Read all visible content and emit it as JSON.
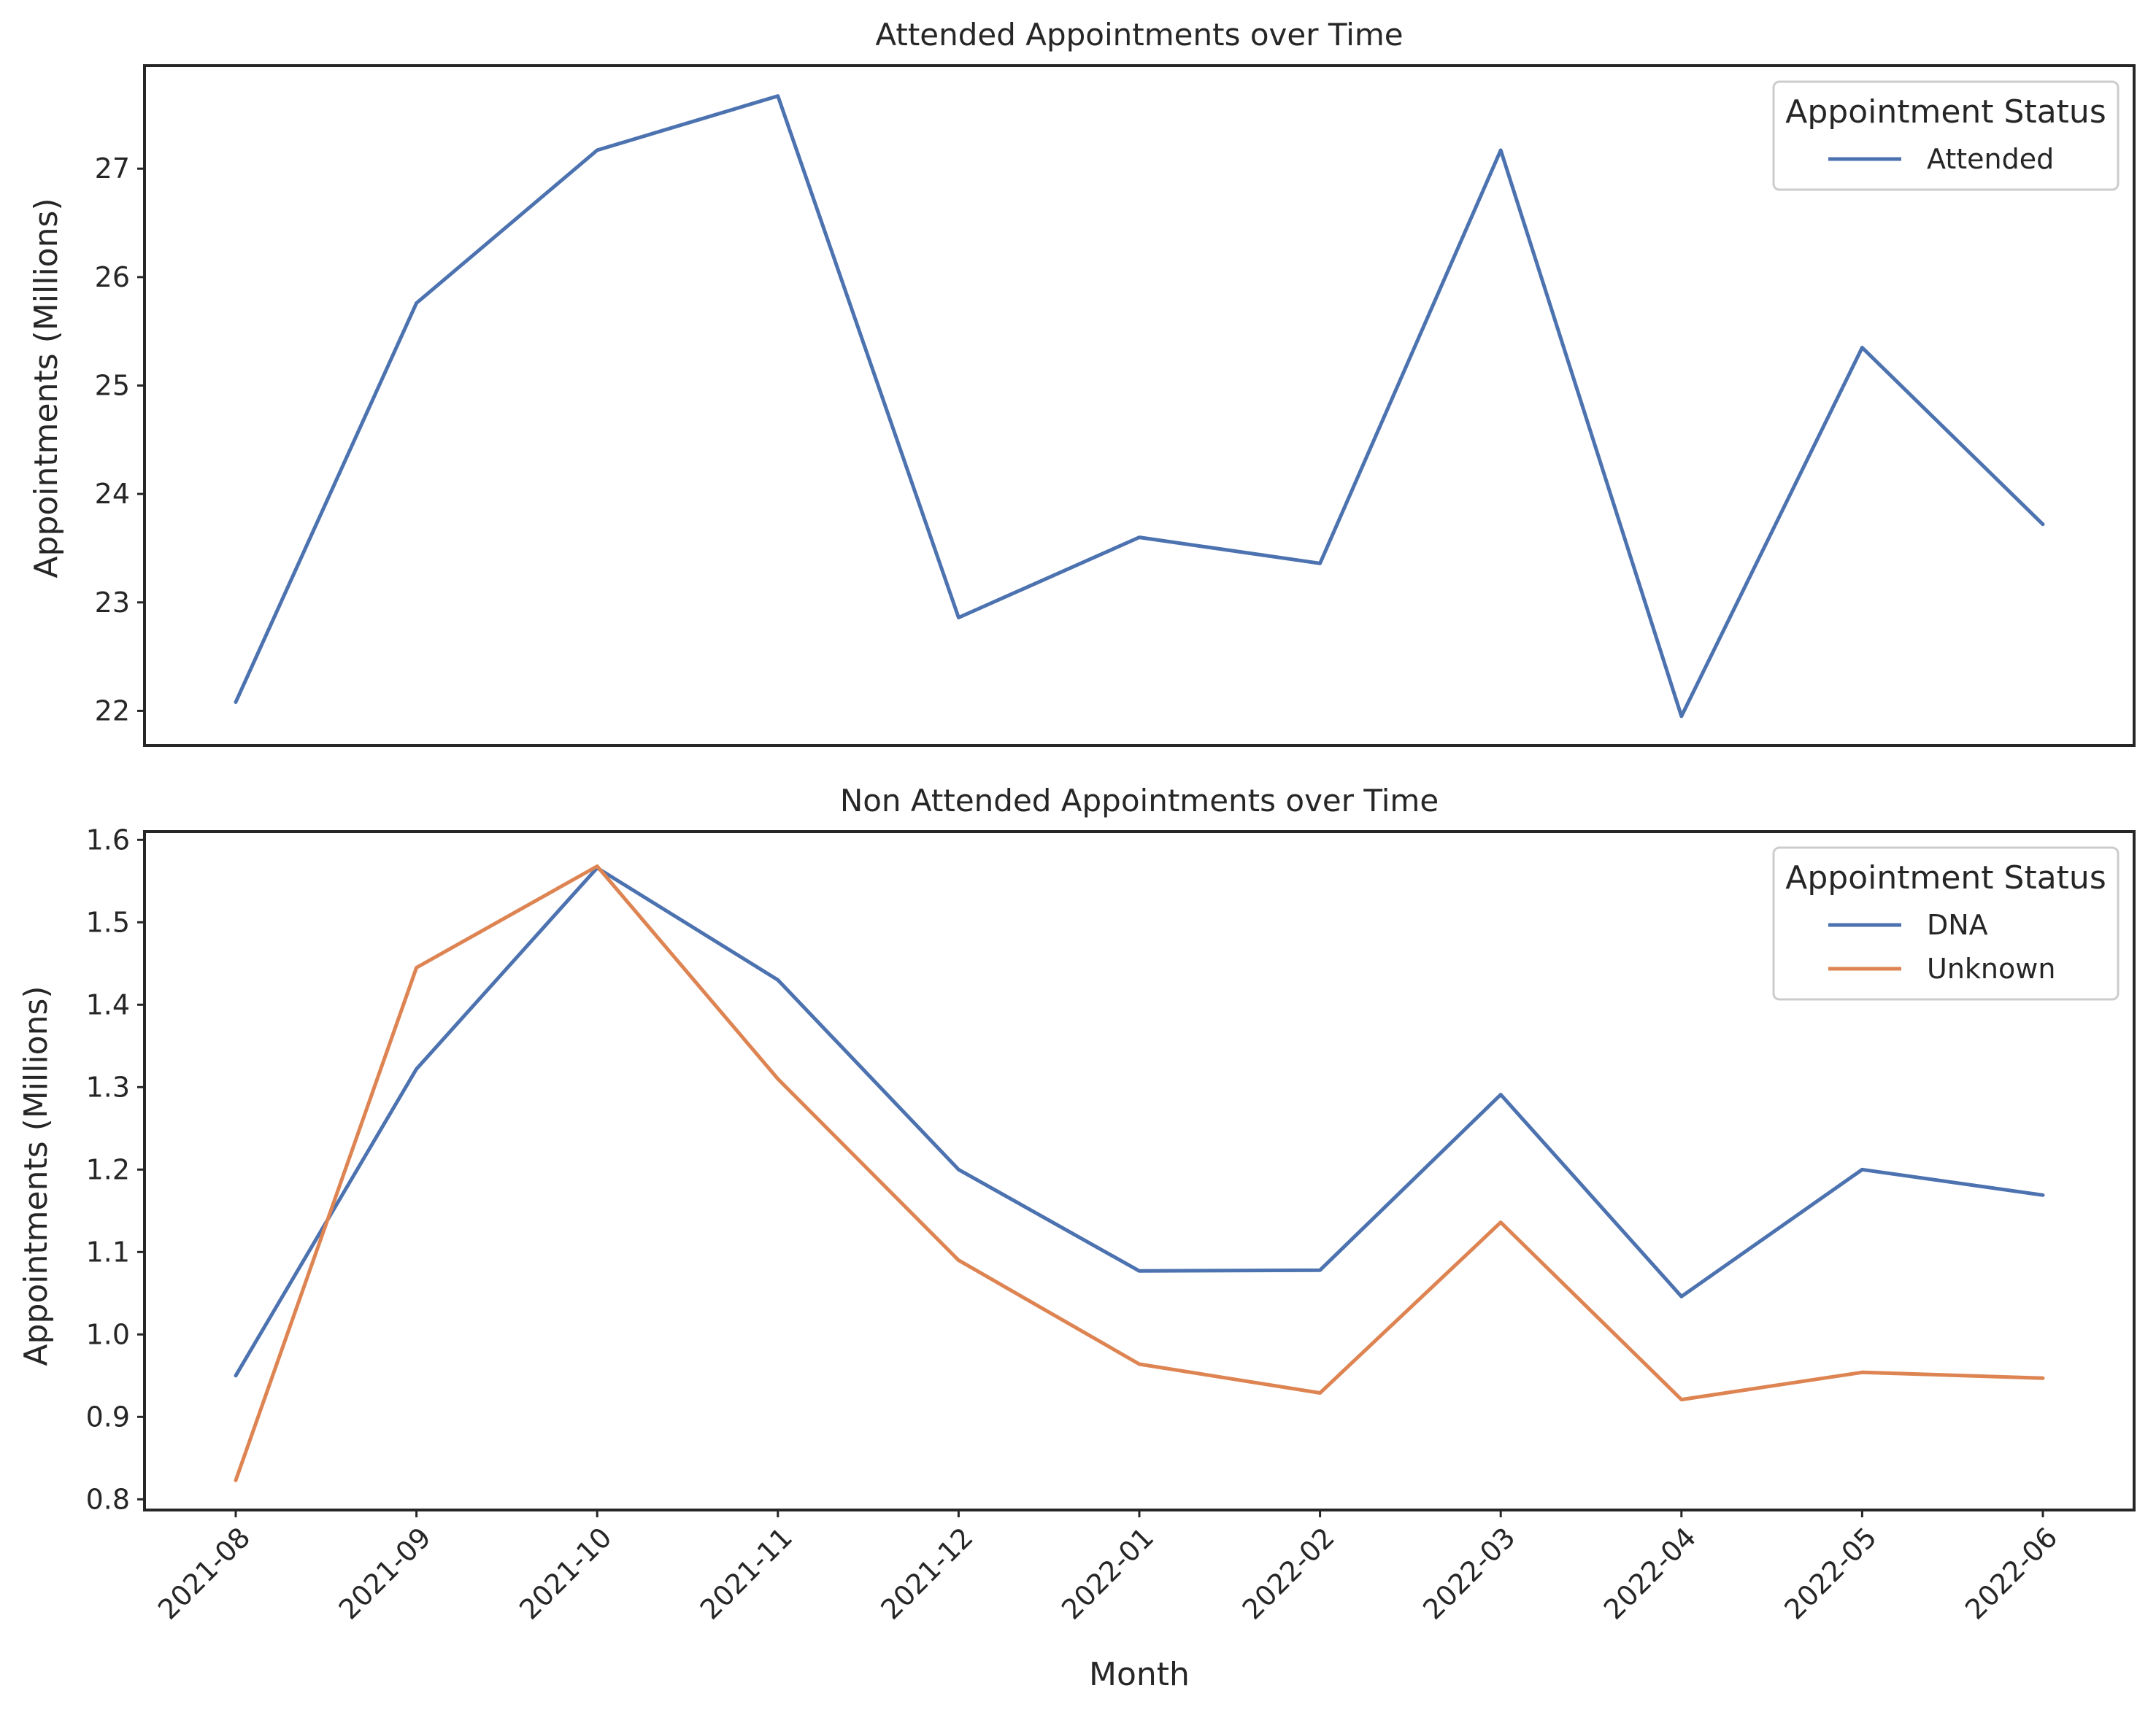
{
  "chart_data": [
    {
      "type": "line",
      "title": "Attended Appointments over Time",
      "xlabel": "",
      "ylabel": "Appointments (Millions)",
      "ylim": [
        21.68,
        27.95
      ],
      "yticks": [
        22,
        23,
        24,
        25,
        26,
        27
      ],
      "grid": false,
      "x": [
        "2021-08",
        "2021-09",
        "2021-10",
        "2021-11",
        "2021-12",
        "2022-01",
        "2022-02",
        "2022-03",
        "2022-04",
        "2022-05",
        "2022-06"
      ],
      "legend": {
        "title": "Appointment Status",
        "placement": "top-right"
      },
      "series": [
        {
          "name": "Attended",
          "color": "#4c72b0",
          "values": [
            22.08,
            25.76,
            27.17,
            27.67,
            22.86,
            23.6,
            23.36,
            27.17,
            21.95,
            25.35,
            23.72
          ]
        }
      ]
    },
    {
      "type": "line",
      "title": "Non Attended Appointments over Time",
      "xlabel": "Month",
      "ylabel": "Appointments (Millions)",
      "ylim": [
        0.787,
        1.61
      ],
      "yticks": [
        0.8,
        0.9,
        1.0,
        1.1,
        1.2,
        1.3,
        1.4,
        1.5,
        1.6
      ],
      "ytick_labels": [
        "0.8",
        "0.9",
        "1.0",
        "1.1",
        "1.2",
        "1.3",
        "1.4",
        "1.5",
        "1.6"
      ],
      "grid": false,
      "x": [
        "2021-08",
        "2021-09",
        "2021-10",
        "2021-11",
        "2021-12",
        "2022-01",
        "2022-02",
        "2022-03",
        "2022-04",
        "2022-05",
        "2022-06"
      ],
      "legend": {
        "title": "Appointment Status",
        "placement": "top-right"
      },
      "series": [
        {
          "name": "DNA",
          "color": "#4c72b0",
          "values": [
            0.95,
            1.322,
            1.566,
            1.43,
            1.2,
            1.077,
            1.078,
            1.291,
            1.046,
            1.2,
            1.169
          ]
        },
        {
          "name": "Unknown",
          "color": "#dd8452",
          "values": [
            0.823,
            1.445,
            1.568,
            1.31,
            1.09,
            0.964,
            0.929,
            1.136,
            0.921,
            0.954,
            0.947
          ]
        }
      ]
    }
  ]
}
